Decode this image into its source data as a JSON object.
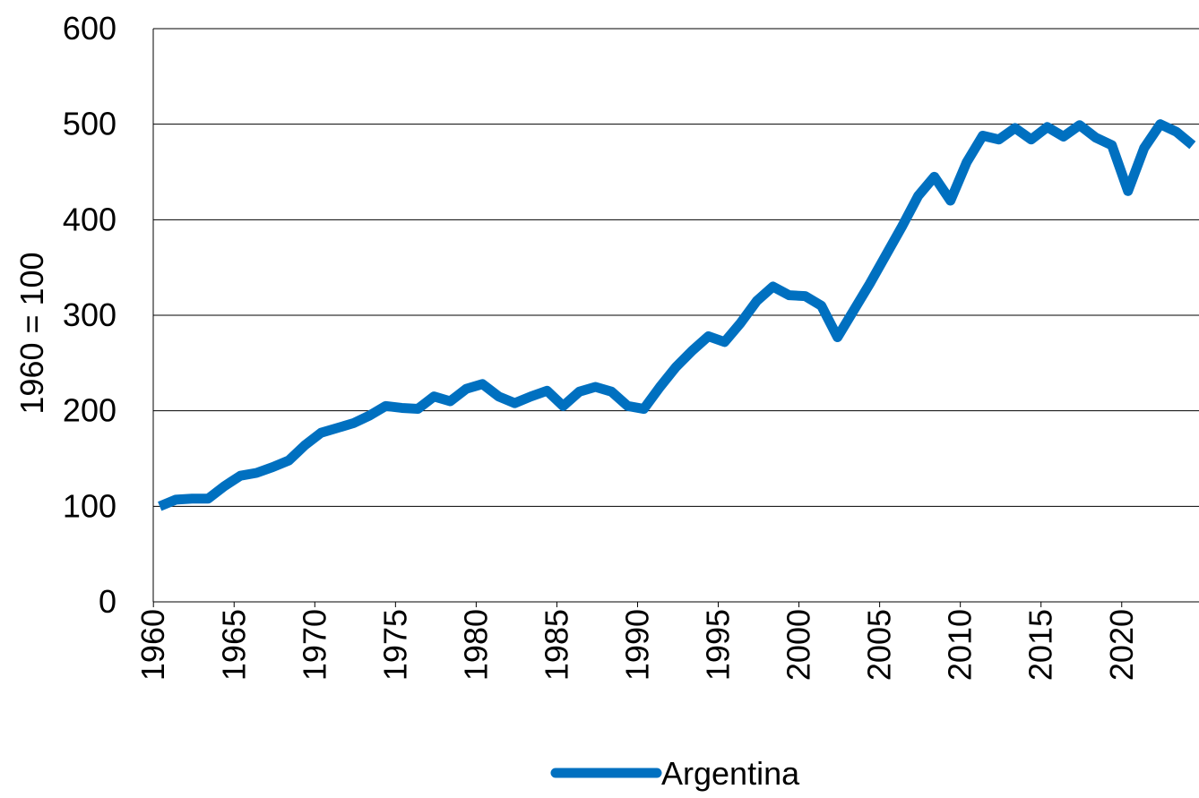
{
  "chart_data": {
    "type": "line",
    "y_label": "1960 = 100",
    "x": [
      1960,
      1961,
      1962,
      1963,
      1964,
      1965,
      1966,
      1967,
      1968,
      1969,
      1970,
      1971,
      1972,
      1973,
      1974,
      1975,
      1976,
      1977,
      1978,
      1979,
      1980,
      1981,
      1982,
      1983,
      1984,
      1985,
      1986,
      1987,
      1988,
      1989,
      1990,
      1991,
      1992,
      1993,
      1994,
      1995,
      1996,
      1997,
      1998,
      1999,
      2000,
      2001,
      2002,
      2003,
      2004,
      2005,
      2006,
      2007,
      2008,
      2009,
      2010,
      2011,
      2012,
      2013,
      2014,
      2015,
      2016,
      2017,
      2018,
      2019,
      2020,
      2021,
      2022,
      2023,
      2024
    ],
    "series": [
      {
        "name": "Argentina",
        "color": "#0070c0",
        "values": [
          100,
          107,
          108,
          108,
          121,
          132,
          135,
          141,
          148,
          164,
          177,
          182,
          187,
          195,
          205,
          203,
          202,
          215,
          210,
          223,
          228,
          215,
          208,
          215,
          221,
          205,
          220,
          225,
          220,
          205,
          202,
          225,
          246,
          263,
          278,
          272,
          292,
          315,
          330,
          321,
          320,
          310,
          277,
          305,
          333,
          363,
          393,
          425,
          445,
          420,
          460,
          488,
          484,
          496,
          484,
          497,
          487,
          499,
          486,
          478,
          430,
          475,
          500,
          492,
          478
        ]
      }
    ],
    "xlim": [
      1959.6,
      2024.4
    ],
    "xticks": [
      1960,
      1965,
      1970,
      1975,
      1980,
      1985,
      1990,
      1995,
      2000,
      2005,
      2010,
      2015,
      2020
    ],
    "ylim": [
      0,
      600
    ],
    "yticks": [
      0,
      100,
      200,
      300,
      400,
      500,
      600
    ],
    "grid": true,
    "legend": "bottom"
  }
}
